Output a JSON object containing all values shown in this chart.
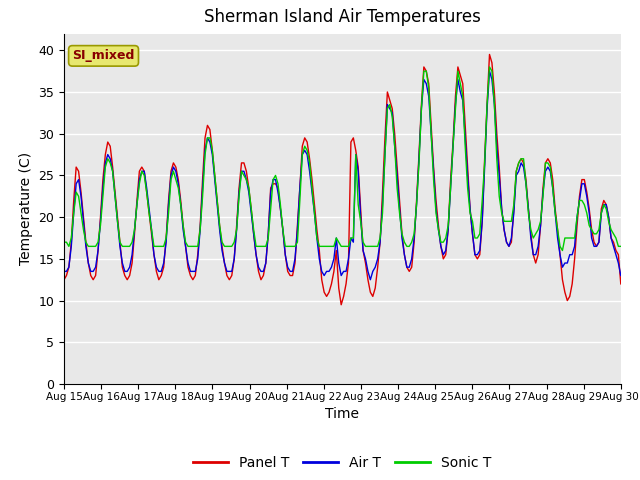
{
  "title": "Sherman Island Air Temperatures",
  "xlabel": "Time",
  "ylabel": "Temperature (C)",
  "ylim": [
    0,
    42
  ],
  "yticks": [
    0,
    5,
    10,
    15,
    20,
    25,
    30,
    35,
    40
  ],
  "xlim": [
    0,
    15
  ],
  "xtick_labels": [
    "Aug 15",
    "Aug 16",
    "Aug 17",
    "Aug 18",
    "Aug 19",
    "Aug 20",
    "Aug 21",
    "Aug 22",
    "Aug 23",
    "Aug 24",
    "Aug 25",
    "Aug 26",
    "Aug 27",
    "Aug 28",
    "Aug 29",
    "Aug 30"
  ],
  "xtick_positions": [
    0,
    1,
    2,
    3,
    4,
    5,
    6,
    7,
    8,
    9,
    10,
    11,
    12,
    13,
    14,
    15
  ],
  "panel_color": "#dd0000",
  "air_color": "#0000dd",
  "sonic_color": "#00cc00",
  "bg_color": "#e8e8e8",
  "legend_label": "SI_mixed",
  "legend_box_color": "#e8e870",
  "legend_text_color": "#880000",
  "panel_T": [
    12.5,
    13.0,
    14.0,
    17.0,
    22.0,
    26.0,
    25.5,
    23.0,
    20.0,
    17.0,
    14.5,
    13.0,
    12.5,
    13.0,
    16.0,
    20.0,
    24.5,
    27.5,
    29.0,
    28.5,
    26.0,
    23.0,
    20.0,
    17.0,
    14.0,
    13.0,
    12.5,
    13.0,
    14.5,
    18.0,
    22.0,
    25.5,
    26.0,
    25.5,
    23.0,
    20.5,
    18.0,
    15.5,
    13.5,
    12.5,
    13.0,
    14.0,
    17.5,
    22.0,
    25.5,
    26.5,
    26.0,
    24.5,
    22.0,
    19.0,
    16.5,
    14.0,
    13.0,
    12.5,
    13.0,
    15.5,
    19.0,
    24.5,
    29.5,
    31.0,
    30.5,
    28.0,
    25.0,
    22.0,
    19.0,
    16.5,
    14.5,
    13.0,
    12.5,
    13.0,
    15.0,
    19.0,
    23.5,
    26.5,
    26.5,
    25.5,
    23.5,
    21.0,
    18.0,
    15.5,
    13.5,
    12.5,
    13.0,
    14.5,
    18.0,
    23.5,
    24.0,
    24.0,
    23.5,
    21.0,
    18.5,
    15.5,
    13.5,
    13.0,
    13.0,
    14.5,
    19.0,
    23.5,
    28.5,
    29.5,
    29.0,
    27.0,
    24.5,
    21.5,
    18.5,
    16.0,
    12.5,
    11.0,
    10.5,
    11.0,
    12.0,
    13.5,
    16.0,
    11.5,
    9.5,
    10.5,
    12.0,
    14.5,
    29.0,
    29.5,
    28.0,
    26.0,
    21.0,
    16.0,
    14.5,
    12.5,
    11.0,
    10.5,
    11.5,
    14.0,
    17.0,
    23.0,
    29.5,
    35.0,
    34.0,
    33.0,
    30.0,
    26.0,
    22.0,
    18.0,
    15.5,
    14.0,
    13.5,
    14.0,
    17.0,
    22.0,
    27.5,
    33.5,
    38.0,
    37.5,
    36.0,
    31.0,
    26.0,
    22.0,
    19.0,
    16.5,
    15.0,
    15.5,
    18.5,
    24.5,
    29.0,
    34.5,
    38.0,
    37.0,
    36.0,
    31.0,
    26.0,
    21.0,
    18.0,
    15.5,
    15.0,
    15.5,
    19.5,
    27.0,
    33.5,
    39.5,
    38.5,
    35.0,
    30.0,
    26.0,
    21.0,
    18.5,
    17.0,
    16.5,
    17.0,
    21.0,
    25.5,
    26.5,
    27.0,
    26.5,
    24.5,
    21.0,
    18.0,
    15.5,
    14.5,
    15.5,
    19.0,
    23.5,
    26.5,
    27.0,
    26.5,
    24.5,
    21.0,
    18.5,
    15.5,
    12.5,
    11.0,
    10.0,
    10.5,
    12.0,
    15.0,
    19.0,
    22.5,
    24.5,
    24.5,
    23.0,
    21.0,
    18.5,
    17.0,
    16.5,
    17.0,
    21.0,
    22.0,
    21.5,
    20.0,
    17.5,
    17.0,
    16.0,
    15.5,
    12.0
  ],
  "air_T": [
    13.5,
    13.5,
    14.0,
    16.5,
    20.5,
    24.0,
    24.5,
    22.5,
    19.5,
    16.5,
    14.5,
    13.5,
    13.5,
    14.0,
    16.0,
    19.5,
    23.5,
    26.5,
    27.5,
    27.0,
    25.5,
    22.5,
    19.5,
    16.5,
    14.5,
    13.5,
    13.5,
    14.0,
    15.5,
    18.5,
    21.5,
    24.5,
    25.5,
    25.5,
    23.5,
    21.0,
    18.5,
    15.5,
    14.0,
    13.5,
    13.5,
    14.5,
    17.0,
    21.5,
    25.0,
    26.0,
    25.5,
    24.0,
    21.5,
    18.5,
    16.5,
    14.5,
    13.5,
    13.5,
    13.5,
    15.0,
    18.5,
    23.5,
    28.0,
    29.5,
    29.0,
    27.5,
    24.5,
    21.5,
    18.5,
    16.0,
    14.5,
    13.5,
    13.5,
    13.5,
    15.0,
    18.5,
    23.0,
    25.5,
    25.5,
    24.5,
    23.0,
    20.5,
    18.0,
    15.5,
    14.0,
    13.5,
    13.5,
    14.5,
    18.0,
    23.0,
    24.5,
    24.5,
    23.0,
    21.0,
    18.5,
    15.5,
    14.0,
    13.5,
    13.5,
    15.0,
    18.5,
    23.5,
    27.5,
    28.0,
    27.5,
    25.5,
    23.0,
    20.5,
    17.5,
    15.0,
    13.5,
    13.0,
    13.5,
    13.5,
    14.0,
    15.0,
    17.5,
    14.5,
    13.0,
    13.5,
    13.5,
    15.0,
    17.5,
    17.0,
    27.5,
    25.5,
    20.0,
    16.0,
    15.0,
    13.5,
    12.5,
    13.5,
    14.0,
    15.0,
    17.0,
    21.5,
    27.5,
    33.5,
    33.0,
    32.5,
    28.5,
    25.0,
    21.0,
    17.5,
    15.5,
    14.0,
    14.0,
    15.0,
    17.5,
    21.5,
    27.0,
    33.0,
    36.5,
    36.0,
    34.5,
    30.0,
    25.5,
    21.0,
    18.5,
    16.5,
    15.5,
    16.0,
    18.5,
    23.5,
    28.5,
    33.5,
    36.5,
    35.0,
    34.0,
    29.5,
    25.0,
    21.0,
    18.0,
    15.5,
    15.5,
    16.0,
    19.5,
    26.0,
    33.0,
    37.5,
    36.5,
    33.5,
    28.5,
    25.0,
    21.0,
    18.5,
    17.0,
    16.5,
    17.5,
    20.5,
    25.0,
    25.5,
    26.5,
    26.0,
    24.0,
    21.0,
    17.5,
    15.5,
    15.5,
    16.5,
    19.0,
    23.0,
    25.5,
    26.0,
    25.5,
    23.5,
    20.5,
    17.5,
    15.5,
    14.0,
    14.5,
    14.5,
    15.5,
    15.5,
    16.5,
    20.0,
    22.0,
    24.0,
    24.0,
    22.5,
    20.5,
    17.5,
    16.5,
    16.5,
    17.0,
    20.5,
    21.5,
    21.5,
    20.0,
    17.5,
    16.5,
    15.5,
    14.5,
    13.0
  ],
  "sonic_T": [
    17.0,
    17.0,
    16.5,
    17.5,
    20.5,
    23.0,
    22.5,
    20.5,
    18.5,
    17.0,
    16.5,
    16.5,
    16.5,
    16.5,
    17.0,
    19.0,
    22.5,
    26.0,
    27.0,
    26.5,
    25.5,
    22.5,
    19.5,
    17.0,
    16.5,
    16.5,
    16.5,
    16.5,
    17.0,
    18.5,
    21.5,
    24.0,
    25.5,
    25.0,
    23.0,
    20.5,
    18.5,
    16.5,
    16.5,
    16.5,
    16.5,
    16.5,
    17.5,
    20.5,
    24.5,
    25.5,
    24.5,
    23.5,
    21.5,
    19.0,
    17.0,
    16.5,
    16.5,
    16.5,
    16.5,
    16.5,
    18.5,
    22.5,
    27.5,
    29.5,
    29.5,
    28.0,
    25.0,
    22.0,
    19.0,
    17.0,
    16.5,
    16.5,
    16.5,
    16.5,
    17.0,
    18.5,
    22.5,
    25.5,
    25.0,
    24.5,
    23.5,
    21.0,
    18.5,
    16.5,
    16.5,
    16.5,
    16.5,
    16.5,
    17.5,
    21.0,
    24.5,
    25.0,
    24.0,
    21.5,
    18.5,
    16.5,
    16.5,
    16.5,
    16.5,
    16.5,
    17.0,
    22.0,
    27.5,
    28.5,
    28.0,
    26.5,
    23.5,
    20.5,
    17.5,
    16.5,
    16.5,
    16.5,
    16.5,
    16.5,
    16.5,
    16.5,
    17.5,
    17.0,
    16.5,
    16.5,
    16.5,
    16.5,
    17.5,
    17.5,
    27.5,
    21.5,
    19.5,
    17.0,
    16.5,
    16.5,
    16.5,
    16.5,
    16.5,
    16.5,
    17.5,
    20.5,
    27.5,
    33.0,
    33.5,
    32.0,
    28.5,
    23.5,
    20.5,
    18.0,
    17.0,
    16.5,
    16.5,
    17.0,
    18.0,
    21.5,
    26.5,
    33.0,
    37.5,
    37.5,
    35.5,
    30.0,
    24.5,
    20.5,
    18.5,
    17.0,
    17.0,
    17.5,
    19.0,
    23.5,
    28.5,
    33.0,
    37.5,
    36.0,
    34.5,
    28.5,
    23.5,
    20.5,
    19.5,
    17.5,
    17.5,
    18.0,
    22.0,
    26.5,
    33.5,
    38.0,
    37.5,
    33.5,
    27.0,
    22.5,
    20.5,
    19.5,
    19.5,
    19.5,
    19.5,
    21.5,
    25.5,
    26.5,
    27.0,
    27.0,
    24.0,
    20.5,
    18.5,
    17.5,
    18.0,
    18.5,
    19.5,
    22.5,
    26.5,
    26.5,
    26.0,
    23.5,
    20.5,
    18.5,
    16.5,
    16.0,
    17.5,
    17.5,
    17.5,
    17.5,
    17.5,
    20.0,
    22.0,
    22.0,
    21.5,
    20.5,
    19.0,
    18.5,
    18.0,
    18.0,
    18.5,
    20.5,
    21.5,
    21.0,
    19.5,
    18.5,
    18.0,
    17.5,
    16.5,
    16.5
  ]
}
